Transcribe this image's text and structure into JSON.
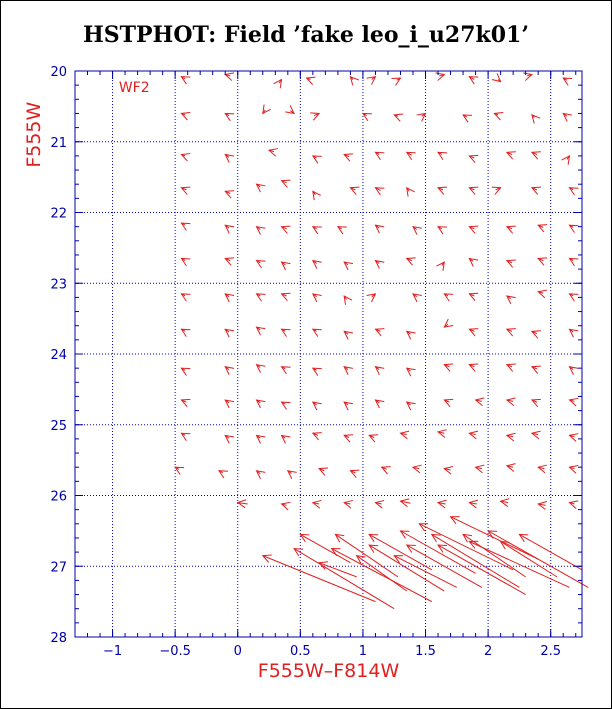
{
  "chart_data": {
    "type": "scatter",
    "title": "HSTPHOT: Field ’fake leo_i_u27k01’",
    "xlabel": "F555W–F814W",
    "ylabel": "F555W",
    "annotation": "WF2",
    "xlim": [
      -1.3,
      2.75
    ],
    "ylim": [
      20,
      28
    ],
    "y_inverted": true,
    "xticks": [
      -1,
      -0.5,
      0,
      0.5,
      1,
      1.5,
      2,
      2.5
    ],
    "xtick_labels": [
      "−1",
      "−0.5",
      "0",
      "0.5",
      "1",
      "1.5",
      "2",
      "2.5"
    ],
    "yticks": [
      20,
      21,
      22,
      23,
      24,
      25,
      26,
      27,
      28
    ],
    "ytick_labels": [
      "20",
      "21",
      "22",
      "23",
      "24",
      "25",
      "26",
      "27",
      "28"
    ],
    "grid": true,
    "colors": {
      "axes": "#0000aa",
      "grid": "#0000cc",
      "marks": "#e02020"
    },
    "vectors": [
      {
        "x": -0.45,
        "y": 20.08,
        "dx": 0.03,
        "dy": 0.03
      },
      {
        "x": -0.1,
        "y": 20.05,
        "dx": 0.04,
        "dy": 0.02
      },
      {
        "x": 0.35,
        "y": 20.12,
        "dx": -0.02,
        "dy": 0.05
      },
      {
        "x": 0.55,
        "y": 20.1,
        "dx": 0.03,
        "dy": 0.02
      },
      {
        "x": 0.9,
        "y": 20.08,
        "dx": 0.02,
        "dy": 0.04
      },
      {
        "x": 1.1,
        "y": 20.08,
        "dx": -0.03,
        "dy": 0.04
      },
      {
        "x": 1.3,
        "y": 20.1,
        "dx": -0.03,
        "dy": 0.03
      },
      {
        "x": 1.65,
        "y": 20.05,
        "dx": -0.04,
        "dy": 0.02
      },
      {
        "x": 1.85,
        "y": 20.08,
        "dx": 0.04,
        "dy": 0.04
      },
      {
        "x": 2.1,
        "y": 20.15,
        "dx": -0.02,
        "dy": -0.03
      },
      {
        "x": 2.35,
        "y": 20.05,
        "dx": -0.04,
        "dy": 0.02
      },
      {
        "x": 2.6,
        "y": 20.1,
        "dx": 0.03,
        "dy": 0.03
      },
      {
        "x": -0.45,
        "y": 20.6,
        "dx": 0.03,
        "dy": 0.02
      },
      {
        "x": -0.1,
        "y": 20.6,
        "dx": 0.03,
        "dy": 0.03
      },
      {
        "x": 0.2,
        "y": 20.6,
        "dx": 0.02,
        "dy": -0.05
      },
      {
        "x": 0.45,
        "y": 20.6,
        "dx": -0.03,
        "dy": -0.04
      },
      {
        "x": 0.65,
        "y": 20.6,
        "dx": -0.04,
        "dy": 0.03
      },
      {
        "x": 1.0,
        "y": 20.6,
        "dx": 0.03,
        "dy": 0.03
      },
      {
        "x": 1.25,
        "y": 20.62,
        "dx": 0.03,
        "dy": 0.02
      },
      {
        "x": 1.5,
        "y": 20.6,
        "dx": -0.03,
        "dy": 0.04
      },
      {
        "x": 1.8,
        "y": 20.62,
        "dx": 0.03,
        "dy": 0.03
      },
      {
        "x": 2.05,
        "y": 20.6,
        "dx": 0.03,
        "dy": 0.02
      },
      {
        "x": 2.35,
        "y": 20.62,
        "dx": 0.02,
        "dy": 0.04
      },
      {
        "x": 2.6,
        "y": 20.6,
        "dx": 0.03,
        "dy": 0.04
      },
      {
        "x": -0.45,
        "y": 21.18,
        "dx": 0.03,
        "dy": 0.02
      },
      {
        "x": -0.1,
        "y": 21.18,
        "dx": 0.03,
        "dy": 0.04
      },
      {
        "x": 0.25,
        "y": 21.12,
        "dx": 0.04,
        "dy": 0.02
      },
      {
        "x": 0.6,
        "y": 21.2,
        "dx": 0.03,
        "dy": 0.03
      },
      {
        "x": 0.85,
        "y": 21.18,
        "dx": 0.04,
        "dy": 0.03
      },
      {
        "x": 1.1,
        "y": 21.15,
        "dx": 0.03,
        "dy": 0.03
      },
      {
        "x": 1.35,
        "y": 21.15,
        "dx": 0.04,
        "dy": 0.04
      },
      {
        "x": 1.6,
        "y": 21.15,
        "dx": 0.03,
        "dy": 0.03
      },
      {
        "x": 1.85,
        "y": 21.2,
        "dx": 0.04,
        "dy": 0.03
      },
      {
        "x": 2.15,
        "y": 21.15,
        "dx": 0.04,
        "dy": 0.03
      },
      {
        "x": 2.35,
        "y": 21.15,
        "dx": 0.04,
        "dy": 0.03
      },
      {
        "x": 2.65,
        "y": 21.2,
        "dx": -0.02,
        "dy": 0.05
      },
      {
        "x": -0.45,
        "y": 21.65,
        "dx": 0.04,
        "dy": 0.03
      },
      {
        "x": -0.1,
        "y": 21.7,
        "dx": 0.04,
        "dy": 0.03
      },
      {
        "x": 0.15,
        "y": 21.6,
        "dx": 0.03,
        "dy": 0.04
      },
      {
        "x": 0.35,
        "y": 21.55,
        "dx": 0.04,
        "dy": 0.03
      },
      {
        "x": 0.6,
        "y": 21.7,
        "dx": 0.02,
        "dy": 0.05
      },
      {
        "x": 0.9,
        "y": 21.65,
        "dx": 0.04,
        "dy": 0.03
      },
      {
        "x": 1.1,
        "y": 21.65,
        "dx": 0.04,
        "dy": 0.04
      },
      {
        "x": 1.35,
        "y": 21.65,
        "dx": 0.02,
        "dy": 0.05
      },
      {
        "x": 1.6,
        "y": 21.65,
        "dx": 0.04,
        "dy": 0.03
      },
      {
        "x": 1.85,
        "y": 21.65,
        "dx": 0.04,
        "dy": 0.03
      },
      {
        "x": 2.1,
        "y": 21.65,
        "dx": -0.04,
        "dy": 0.03
      },
      {
        "x": 2.35,
        "y": 21.65,
        "dx": 0.04,
        "dy": 0.03
      },
      {
        "x": 2.65,
        "y": 21.65,
        "dx": 0.03,
        "dy": 0.03
      },
      {
        "x": -0.45,
        "y": 22.15,
        "dx": 0.03,
        "dy": 0.03
      },
      {
        "x": -0.1,
        "y": 22.18,
        "dx": 0.03,
        "dy": 0.04
      },
      {
        "x": 0.15,
        "y": 22.2,
        "dx": 0.03,
        "dy": 0.04
      },
      {
        "x": 0.35,
        "y": 22.2,
        "dx": 0.04,
        "dy": 0.03
      },
      {
        "x": 0.6,
        "y": 22.2,
        "dx": 0.03,
        "dy": 0.03
      },
      {
        "x": 0.8,
        "y": 22.2,
        "dx": 0.03,
        "dy": 0.03
      },
      {
        "x": 1.1,
        "y": 22.18,
        "dx": 0.03,
        "dy": 0.04
      },
      {
        "x": 1.4,
        "y": 22.2,
        "dx": 0.03,
        "dy": 0.04
      },
      {
        "x": 1.6,
        "y": 22.2,
        "dx": 0.03,
        "dy": 0.03
      },
      {
        "x": 1.85,
        "y": 22.2,
        "dx": 0.04,
        "dy": 0.03
      },
      {
        "x": 2.15,
        "y": 22.2,
        "dx": 0.04,
        "dy": 0.03
      },
      {
        "x": 2.4,
        "y": 22.18,
        "dx": 0.04,
        "dy": 0.03
      },
      {
        "x": 2.65,
        "y": 22.18,
        "dx": 0.03,
        "dy": 0.03
      },
      {
        "x": -0.45,
        "y": 22.65,
        "dx": 0.03,
        "dy": 0.03
      },
      {
        "x": -0.1,
        "y": 22.65,
        "dx": 0.04,
        "dy": 0.03
      },
      {
        "x": 0.15,
        "y": 22.68,
        "dx": 0.03,
        "dy": 0.03
      },
      {
        "x": 0.35,
        "y": 22.7,
        "dx": 0.03,
        "dy": 0.04
      },
      {
        "x": 0.6,
        "y": 22.68,
        "dx": 0.03,
        "dy": 0.04
      },
      {
        "x": 0.85,
        "y": 22.7,
        "dx": 0.03,
        "dy": 0.04
      },
      {
        "x": 1.1,
        "y": 22.68,
        "dx": 0.03,
        "dy": 0.04
      },
      {
        "x": 1.35,
        "y": 22.65,
        "dx": 0.04,
        "dy": 0.03
      },
      {
        "x": 1.65,
        "y": 22.7,
        "dx": -0.02,
        "dy": 0.05
      },
      {
        "x": 1.85,
        "y": 22.65,
        "dx": 0.03,
        "dy": 0.04
      },
      {
        "x": 2.15,
        "y": 22.68,
        "dx": 0.04,
        "dy": 0.03
      },
      {
        "x": 2.4,
        "y": 22.65,
        "dx": 0.04,
        "dy": 0.03
      },
      {
        "x": 2.65,
        "y": 22.65,
        "dx": 0.03,
        "dy": 0.03
      },
      {
        "x": -0.45,
        "y": 23.15,
        "dx": 0.03,
        "dy": 0.03
      },
      {
        "x": -0.1,
        "y": 23.15,
        "dx": 0.03,
        "dy": 0.04
      },
      {
        "x": 0.15,
        "y": 23.15,
        "dx": 0.03,
        "dy": 0.03
      },
      {
        "x": 0.35,
        "y": 23.15,
        "dx": 0.04,
        "dy": 0.03
      },
      {
        "x": 0.6,
        "y": 23.15,
        "dx": 0.03,
        "dy": 0.04
      },
      {
        "x": 0.85,
        "y": 23.18,
        "dx": 0.02,
        "dy": 0.05
      },
      {
        "x": 1.1,
        "y": 23.15,
        "dx": -0.03,
        "dy": 0.04
      },
      {
        "x": 1.4,
        "y": 23.15,
        "dx": 0.03,
        "dy": 0.04
      },
      {
        "x": 1.65,
        "y": 23.15,
        "dx": 0.03,
        "dy": 0.03
      },
      {
        "x": 1.85,
        "y": 23.15,
        "dx": 0.04,
        "dy": 0.03
      },
      {
        "x": 2.15,
        "y": 23.18,
        "dx": 0.03,
        "dy": 0.04
      },
      {
        "x": 2.4,
        "y": 23.12,
        "dx": 0.04,
        "dy": 0.02
      },
      {
        "x": 2.65,
        "y": 23.15,
        "dx": 0.03,
        "dy": 0.03
      },
      {
        "x": -0.45,
        "y": 23.65,
        "dx": 0.03,
        "dy": 0.03
      },
      {
        "x": -0.1,
        "y": 23.65,
        "dx": 0.03,
        "dy": 0.04
      },
      {
        "x": 0.15,
        "y": 23.62,
        "dx": 0.03,
        "dy": 0.04
      },
      {
        "x": 0.35,
        "y": 23.65,
        "dx": 0.03,
        "dy": 0.03
      },
      {
        "x": 0.6,
        "y": 23.65,
        "dx": 0.03,
        "dy": 0.03
      },
      {
        "x": 0.85,
        "y": 23.68,
        "dx": 0.03,
        "dy": 0.04
      },
      {
        "x": 1.1,
        "y": 23.65,
        "dx": 0.04,
        "dy": 0.03
      },
      {
        "x": 1.35,
        "y": 23.68,
        "dx": 0.03,
        "dy": 0.04
      },
      {
        "x": 1.65,
        "y": 23.62,
        "dx": 0.03,
        "dy": -0.04
      },
      {
        "x": 1.85,
        "y": 23.65,
        "dx": 0.04,
        "dy": 0.03
      },
      {
        "x": 2.15,
        "y": 23.65,
        "dx": 0.04,
        "dy": 0.03
      },
      {
        "x": 2.35,
        "y": 23.68,
        "dx": 0.04,
        "dy": 0.03
      },
      {
        "x": 2.65,
        "y": 23.65,
        "dx": 0.03,
        "dy": 0.04
      },
      {
        "x": -0.45,
        "y": 24.2,
        "dx": 0.03,
        "dy": 0.03
      },
      {
        "x": -0.1,
        "y": 24.18,
        "dx": 0.03,
        "dy": 0.04
      },
      {
        "x": 0.15,
        "y": 24.15,
        "dx": 0.03,
        "dy": 0.04
      },
      {
        "x": 0.35,
        "y": 24.18,
        "dx": 0.03,
        "dy": 0.03
      },
      {
        "x": 0.6,
        "y": 24.2,
        "dx": 0.03,
        "dy": 0.03
      },
      {
        "x": 0.85,
        "y": 24.18,
        "dx": 0.03,
        "dy": 0.04
      },
      {
        "x": 1.1,
        "y": 24.18,
        "dx": 0.03,
        "dy": 0.04
      },
      {
        "x": 1.35,
        "y": 24.2,
        "dx": 0.03,
        "dy": 0.04
      },
      {
        "x": 1.65,
        "y": 24.15,
        "dx": 0.04,
        "dy": 0.03
      },
      {
        "x": 1.85,
        "y": 24.15,
        "dx": 0.04,
        "dy": 0.03
      },
      {
        "x": 2.15,
        "y": 24.15,
        "dx": 0.04,
        "dy": 0.03
      },
      {
        "x": 2.35,
        "y": 24.18,
        "dx": 0.04,
        "dy": 0.03
      },
      {
        "x": 2.65,
        "y": 24.18,
        "dx": 0.03,
        "dy": 0.04
      },
      {
        "x": -0.45,
        "y": 24.65,
        "dx": 0.04,
        "dy": 0.03
      },
      {
        "x": -0.1,
        "y": 24.65,
        "dx": 0.03,
        "dy": 0.04
      },
      {
        "x": 0.15,
        "y": 24.65,
        "dx": 0.03,
        "dy": 0.04
      },
      {
        "x": 0.35,
        "y": 24.68,
        "dx": 0.03,
        "dy": 0.03
      },
      {
        "x": 0.6,
        "y": 24.68,
        "dx": 0.03,
        "dy": 0.04
      },
      {
        "x": 0.85,
        "y": 24.68,
        "dx": 0.03,
        "dy": 0.04
      },
      {
        "x": 1.1,
        "y": 24.65,
        "dx": 0.03,
        "dy": 0.04
      },
      {
        "x": 1.35,
        "y": 24.68,
        "dx": 0.03,
        "dy": 0.04
      },
      {
        "x": 1.65,
        "y": 24.65,
        "dx": 0.04,
        "dy": 0.03
      },
      {
        "x": 1.9,
        "y": 24.65,
        "dx": 0.05,
        "dy": 0.02
      },
      {
        "x": 2.15,
        "y": 24.65,
        "dx": 0.05,
        "dy": 0.02
      },
      {
        "x": 2.35,
        "y": 24.65,
        "dx": 0.04,
        "dy": 0.03
      },
      {
        "x": 2.65,
        "y": 24.65,
        "dx": 0.04,
        "dy": 0.02
      },
      {
        "x": -0.45,
        "y": 25.12,
        "dx": 0.03,
        "dy": 0.03
      },
      {
        "x": -0.1,
        "y": 25.15,
        "dx": 0.03,
        "dy": 0.04
      },
      {
        "x": 0.15,
        "y": 25.15,
        "dx": 0.03,
        "dy": 0.04
      },
      {
        "x": 0.35,
        "y": 25.15,
        "dx": 0.03,
        "dy": 0.04
      },
      {
        "x": 0.6,
        "y": 25.12,
        "dx": 0.04,
        "dy": 0.03
      },
      {
        "x": 0.85,
        "y": 25.15,
        "dx": 0.04,
        "dy": 0.03
      },
      {
        "x": 1.05,
        "y": 25.15,
        "dx": 0.04,
        "dy": 0.03
      },
      {
        "x": 1.3,
        "y": 25.12,
        "dx": 0.05,
        "dy": 0.02
      },
      {
        "x": 1.6,
        "y": 25.1,
        "dx": 0.05,
        "dy": 0.02
      },
      {
        "x": 1.85,
        "y": 25.12,
        "dx": 0.05,
        "dy": 0.02
      },
      {
        "x": 2.15,
        "y": 25.15,
        "dx": 0.05,
        "dy": 0.02
      },
      {
        "x": 2.35,
        "y": 25.12,
        "dx": 0.05,
        "dy": 0.02
      },
      {
        "x": 2.65,
        "y": 25.15,
        "dx": 0.04,
        "dy": 0.02
      },
      {
        "x": -0.5,
        "y": 25.6,
        "dx": 0.03,
        "dy": 0.03
      },
      {
        "x": -0.15,
        "y": 25.65,
        "dx": 0.03,
        "dy": 0.03
      },
      {
        "x": 0.15,
        "y": 25.65,
        "dx": 0.03,
        "dy": 0.04
      },
      {
        "x": 0.4,
        "y": 25.65,
        "dx": 0.03,
        "dy": 0.04
      },
      {
        "x": 0.65,
        "y": 25.62,
        "dx": 0.04,
        "dy": 0.03
      },
      {
        "x": 0.9,
        "y": 25.65,
        "dx": 0.04,
        "dy": 0.03
      },
      {
        "x": 1.15,
        "y": 25.6,
        "dx": 0.04,
        "dy": 0.03
      },
      {
        "x": 1.4,
        "y": 25.6,
        "dx": 0.05,
        "dy": 0.02
      },
      {
        "x": 1.65,
        "y": 25.62,
        "dx": 0.05,
        "dy": 0.02
      },
      {
        "x": 1.9,
        "y": 25.6,
        "dx": 0.05,
        "dy": 0.02
      },
      {
        "x": 2.15,
        "y": 25.58,
        "dx": 0.05,
        "dy": 0.02
      },
      {
        "x": 2.4,
        "y": 25.6,
        "dx": 0.05,
        "dy": 0.02
      },
      {
        "x": 2.65,
        "y": 25.6,
        "dx": 0.04,
        "dy": 0.02
      },
      {
        "x": 0.0,
        "y": 26.1,
        "dx": 0.08,
        "dy": 0.02
      },
      {
        "x": 0.35,
        "y": 26.12,
        "dx": 0.04,
        "dy": 0.02
      },
      {
        "x": 0.6,
        "y": 26.1,
        "dx": 0.05,
        "dy": 0.02
      },
      {
        "x": 0.85,
        "y": 26.1,
        "dx": 0.05,
        "dy": 0.02
      },
      {
        "x": 1.1,
        "y": 26.1,
        "dx": 0.05,
        "dy": 0.02
      },
      {
        "x": 1.3,
        "y": 26.08,
        "dx": 0.08,
        "dy": 0.03
      },
      {
        "x": 1.6,
        "y": 26.1,
        "dx": 0.06,
        "dy": 0.02
      },
      {
        "x": 1.85,
        "y": 26.1,
        "dx": 0.06,
        "dy": 0.02
      },
      {
        "x": 2.1,
        "y": 26.08,
        "dx": 0.06,
        "dy": 0.02
      },
      {
        "x": 2.4,
        "y": 26.12,
        "dx": 0.06,
        "dy": 0.02
      },
      {
        "x": 2.65,
        "y": 26.1,
        "dx": 0.04,
        "dy": 0.02
      },
      {
        "x": 0.5,
        "y": 26.55,
        "dx": 0.4,
        "dy": 0.4
      },
      {
        "x": 0.78,
        "y": 26.55,
        "dx": 0.5,
        "dy": 0.6
      },
      {
        "x": 1.05,
        "y": 26.55,
        "dx": 0.5,
        "dy": 0.5
      },
      {
        "x": 1.3,
        "y": 26.5,
        "dx": 0.6,
        "dy": 0.6
      },
      {
        "x": 1.55,
        "y": 26.55,
        "dx": 0.7,
        "dy": 0.75
      },
      {
        "x": 1.8,
        "y": 26.55,
        "dx": 0.5,
        "dy": 0.6
      },
      {
        "x": 2.0,
        "y": 26.5,
        "dx": 0.8,
        "dy": 0.8
      },
      {
        "x": 2.25,
        "y": 26.55,
        "dx": 0.5,
        "dy": 0.5
      },
      {
        "x": 1.7,
        "y": 26.3,
        "dx": 0.7,
        "dy": 0.6
      },
      {
        "x": 1.45,
        "y": 26.4,
        "dx": 0.75,
        "dy": 0.65
      },
      {
        "x": 0.45,
        "y": 26.75,
        "dx": 0.8,
        "dy": 0.85
      },
      {
        "x": 0.75,
        "y": 26.75,
        "dx": 0.8,
        "dy": 0.75
      },
      {
        "x": 1.05,
        "y": 26.7,
        "dx": 0.6,
        "dy": 0.65
      },
      {
        "x": 1.35,
        "y": 26.7,
        "dx": 0.6,
        "dy": 0.6
      },
      {
        "x": 1.6,
        "y": 26.7,
        "dx": 0.7,
        "dy": 0.7
      },
      {
        "x": 1.85,
        "y": 26.65,
        "dx": 0.8,
        "dy": 0.65
      },
      {
        "x": 2.1,
        "y": 26.65,
        "dx": 0.45,
        "dy": 0.5
      },
      {
        "x": 0.2,
        "y": 26.85,
        "dx": 0.9,
        "dy": 0.65
      },
      {
        "x": 0.95,
        "y": 26.85,
        "dx": 0.4,
        "dy": 0.5
      },
      {
        "x": 1.25,
        "y": 26.85,
        "dx": 0.5,
        "dy": 0.45
      },
      {
        "x": 0.65,
        "y": 26.95,
        "dx": 0.3,
        "dy": 0.2
      }
    ]
  }
}
